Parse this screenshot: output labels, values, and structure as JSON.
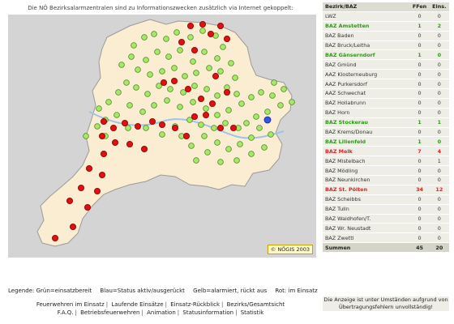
{
  "intro_text": "Die NÖ Bezirksalarmzentralen sind zu Informationszwecken zusätzlich via Internet gekoppelt:",
  "map": {
    "copyright": "© NÖGIS 2003",
    "dot_colors": {
      "green": "#a8e866",
      "red": "#dd1111",
      "blue": "#3355ee"
    }
  },
  "legend": [
    "Legende: Grün=einsatzbereit",
    "Blau=Status aktiv/ausgerückt",
    "Gelb=alarmiert, rückt aus",
    "Rot: im Einsatz"
  ],
  "nav_row1": [
    "Feuerwehren im Einsatz",
    "Laufende Einsätze",
    "Einsatz-Rückblick",
    "Bezirks/Gesamtsicht"
  ],
  "nav_row2": [
    "F.A.Q.",
    "Betriebsfeuerwehren",
    "Animation",
    "Statusinformation",
    "Statistik"
  ],
  "table": {
    "headers": [
      "Bezirk/BAZ",
      "FFen",
      "Eins."
    ],
    "rows": [
      {
        "name": "LWZ",
        "ffen": "0",
        "eins": "0",
        "status": "normal"
      },
      {
        "name": "BAZ Amstetten",
        "ffen": "1",
        "eins": "2",
        "status": "active"
      },
      {
        "name": "BAZ Baden",
        "ffen": "0",
        "eins": "0",
        "status": "normal"
      },
      {
        "name": "BAZ Bruck/Leitha",
        "ffen": "0",
        "eins": "0",
        "status": "normal"
      },
      {
        "name": "BAZ Gänserndorf",
        "ffen": "1",
        "eins": "0",
        "status": "active"
      },
      {
        "name": "BAZ Gmünd",
        "ffen": "0",
        "eins": "0",
        "status": "normal"
      },
      {
        "name": "AAZ Klosterneuburg",
        "ffen": "0",
        "eins": "0",
        "status": "normal"
      },
      {
        "name": "AAZ Purkersdorf",
        "ffen": "0",
        "eins": "0",
        "status": "normal"
      },
      {
        "name": "AAZ Schwechat",
        "ffen": "0",
        "eins": "0",
        "status": "normal"
      },
      {
        "name": "BAZ Hollabrunn",
        "ffen": "0",
        "eins": "0",
        "status": "normal"
      },
      {
        "name": "BAZ Horn",
        "ffen": "0",
        "eins": "0",
        "status": "normal"
      },
      {
        "name": "BAZ Stockerau",
        "ffen": "1",
        "eins": "1",
        "status": "active"
      },
      {
        "name": "BAZ Krems/Donau",
        "ffen": "0",
        "eins": "0",
        "status": "normal"
      },
      {
        "name": "BAZ Lilienfeld",
        "ffen": "1",
        "eins": "0",
        "status": "active"
      },
      {
        "name": "BAZ Melk",
        "ffen": "7",
        "eins": "4",
        "status": "alarm"
      },
      {
        "name": "BAZ Mistelbach",
        "ffen": "0",
        "eins": "1",
        "status": "normal"
      },
      {
        "name": "BAZ Mödling",
        "ffen": "0",
        "eins": "0",
        "status": "normal"
      },
      {
        "name": "BAZ Neunkirchen",
        "ffen": "0",
        "eins": "0",
        "status": "normal"
      },
      {
        "name": "BAZ St. Pölten",
        "ffen": "34",
        "eins": "12",
        "status": "alarm"
      },
      {
        "name": "BAZ Scheibbs",
        "ffen": "0",
        "eins": "0",
        "status": "normal"
      },
      {
        "name": "BAZ Tulln",
        "ffen": "0",
        "eins": "0",
        "status": "normal"
      },
      {
        "name": "BAZ Waidhofen/T.",
        "ffen": "0",
        "eins": "0",
        "status": "normal"
      },
      {
        "name": "BAZ Wr. Neustadt",
        "ffen": "0",
        "eins": "0",
        "status": "normal"
      },
      {
        "name": "BAZ Zwettl",
        "ffen": "0",
        "eins": "0",
        "status": "normal"
      }
    ],
    "summen": {
      "label": "Summen",
      "ffen": "45",
      "eins": "20"
    }
  },
  "note": "Die Anzeige ist unter Umständen aufgrund von Übertragungsfehlern unvollständig!"
}
